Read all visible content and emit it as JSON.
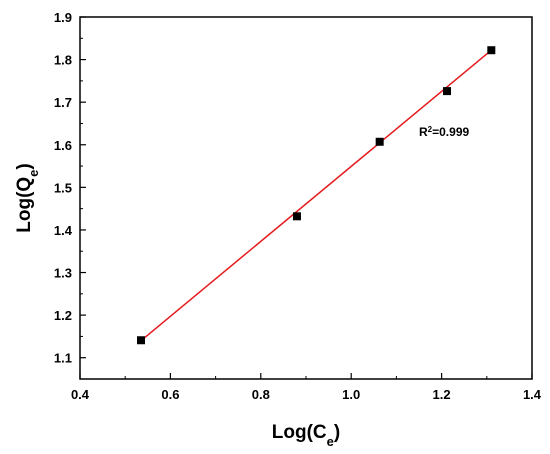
{
  "chart_data": {
    "type": "scatter",
    "xlabel": {
      "base": "Log(C",
      "sub": "e",
      "end": ")"
    },
    "ylabel": {
      "base": "Log(Q",
      "sub": "e",
      "end": ")"
    },
    "xlim": [
      0.4,
      1.4
    ],
    "ylim": [
      1.05,
      1.9
    ],
    "x_ticks": [
      "0.4",
      "0.6",
      "0.8",
      "1.0",
      "1.2",
      "1.4"
    ],
    "y_ticks": [
      "1.1",
      "1.2",
      "1.3",
      "1.4",
      "1.5",
      "1.6",
      "1.7",
      "1.8",
      "1.9"
    ],
    "grid": false,
    "legend": "none",
    "series": [
      {
        "marker": "square",
        "color": "#000000",
        "points": [
          {
            "x": 0.535,
            "y": 1.141
          },
          {
            "x": 0.88,
            "y": 1.432
          },
          {
            "x": 1.063,
            "y": 1.607
          },
          {
            "x": 1.212,
            "y": 1.726
          },
          {
            "x": 1.31,
            "y": 1.822
          }
        ]
      }
    ],
    "fit_line": {
      "color": "#e41a1c",
      "x": [
        0.535,
        1.31
      ],
      "y": [
        1.14,
        1.822
      ]
    },
    "annotation": {
      "base": "R",
      "sup": "2",
      "rest": "=0.999",
      "x": 1.15,
      "y": 1.62
    }
  }
}
